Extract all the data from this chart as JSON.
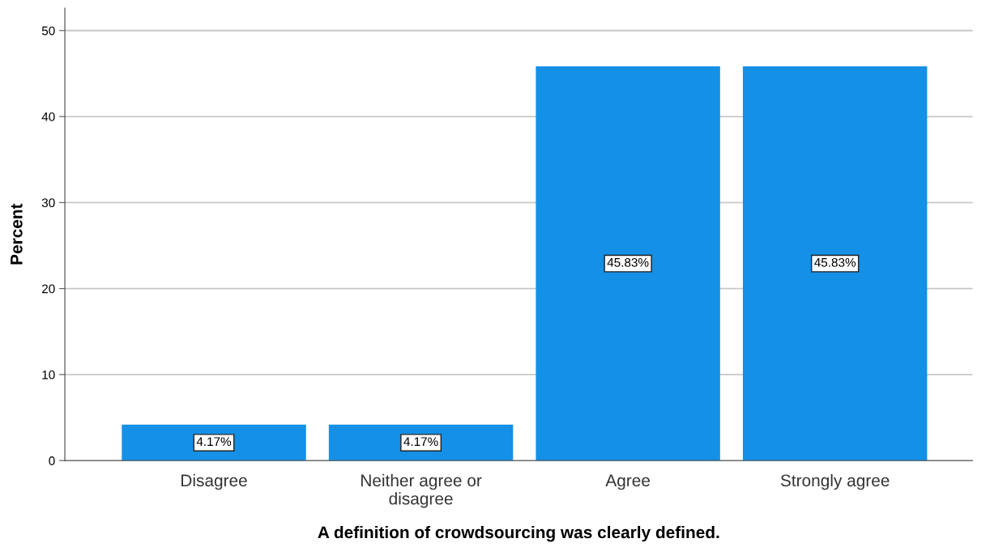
{
  "chart_data": {
    "type": "bar",
    "xlabel": "A definition of crowdsourcing was clearly defined.",
    "ylabel": "Percent",
    "categories": [
      "Disagree",
      "Neither agree or\ndisagree",
      "Agree",
      "Strongly agree"
    ],
    "values": [
      4.17,
      4.17,
      45.83,
      45.83
    ],
    "value_labels": [
      "4.17%",
      "4.17%",
      "45.83%",
      "45.83%"
    ],
    "color": "#1490e6",
    "ylim": [
      0,
      52.6
    ],
    "yticks": [
      0,
      10,
      20,
      30,
      40,
      50
    ],
    "grid": "y"
  }
}
